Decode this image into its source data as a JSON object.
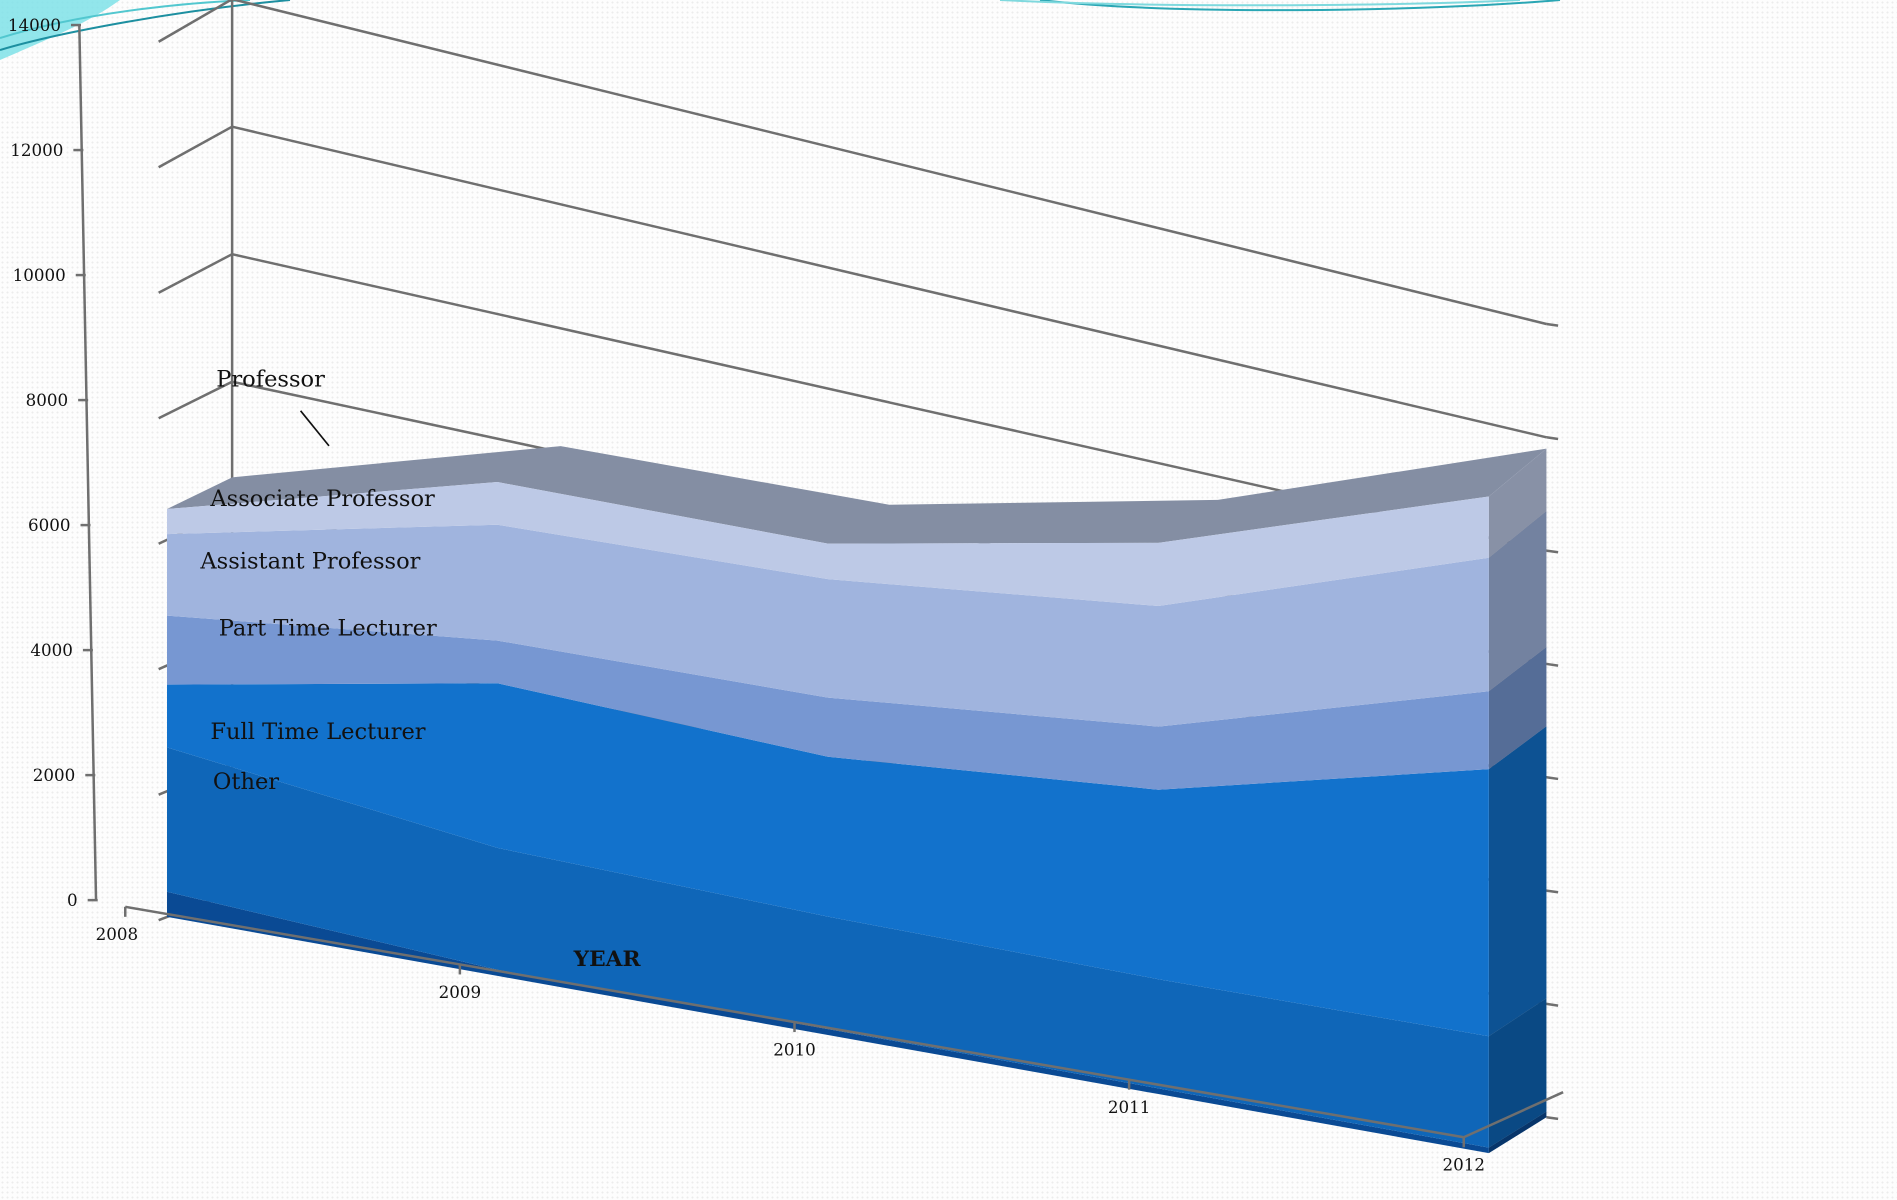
{
  "chart_data": {
    "type": "area",
    "stacked": true,
    "three_d": true,
    "title": "",
    "xlabel": "YEAR",
    "ylabel": "",
    "ylim": [
      0,
      14000
    ],
    "y_ticks": [
      "0",
      "2000",
      "4000",
      "6000",
      "8000",
      "10000",
      "12000",
      "14000"
    ],
    "categories": [
      "2008",
      "2009",
      "2010",
      "2011",
      "2012"
    ],
    "grid": true,
    "legend": "none",
    "series": [
      {
        "name": "Other",
        "values": [
          400,
          100,
          100,
          100,
          100
        ],
        "color": "#0a4a94"
      },
      {
        "name": "Full Time Lecturer",
        "values": [
          2300,
          2000,
          1900,
          1900,
          2000
        ],
        "color": "#0f66b8"
      },
      {
        "name": "Part Time Lecturer",
        "values": [
          1000,
          2700,
          2700,
          3300,
          4800
        ],
        "color": "#1272cc"
      },
      {
        "name": "Assistant Professor",
        "values": [
          1100,
          700,
          1000,
          1100,
          1400
        ],
        "color": "#7797d2"
      },
      {
        "name": "Associate Professor",
        "values": [
          1300,
          1900,
          2000,
          2100,
          2400
        ],
        "color": "#a0b4de"
      },
      {
        "name": "Professor",
        "values": [
          400,
          700,
          600,
          1100,
          1100
        ],
        "color": "#bdc9e6"
      }
    ],
    "top_edge_color": "#848ea3"
  }
}
